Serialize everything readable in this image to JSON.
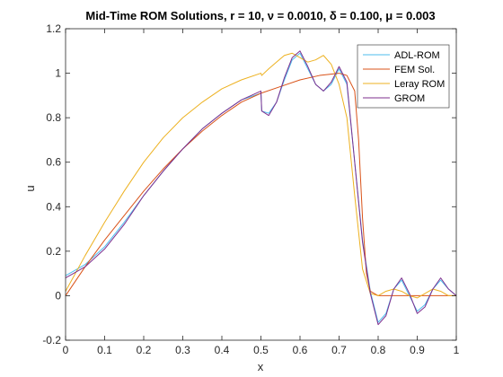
{
  "chart_data": {
    "type": "line",
    "title": "Mid-Time ROM Solutions, r = 10, ν = 0.0010, δ = 0.100, μ = 0.003",
    "xlabel": "x",
    "ylabel": "u",
    "xlim": [
      0,
      1
    ],
    "ylim": [
      -0.2,
      1.2
    ],
    "xticks": [
      "0",
      "0.1",
      "0.2",
      "0.3",
      "0.4",
      "0.5",
      "0.6",
      "0.7",
      "0.8",
      "0.9",
      "1"
    ],
    "yticks": [
      "-0.2",
      "0",
      "0.2",
      "0.4",
      "0.6",
      "0.8",
      "1",
      "1.2"
    ],
    "grid": false,
    "legend_position": "top-right",
    "series": [
      {
        "name": "ADL-ROM",
        "color": "#4DBEEE",
        "x": [
          0,
          0.02,
          0.05,
          0.1,
          0.15,
          0.2,
          0.25,
          0.3,
          0.35,
          0.4,
          0.45,
          0.5,
          0.502,
          0.52,
          0.54,
          0.56,
          0.58,
          0.6,
          0.62,
          0.64,
          0.66,
          0.68,
          0.7,
          0.72,
          0.74,
          0.76,
          0.78,
          0.8,
          0.82,
          0.84,
          0.86,
          0.88,
          0.9,
          0.92,
          0.94,
          0.96,
          0.98,
          1.0
        ],
        "y": [
          0.09,
          0.11,
          0.14,
          0.22,
          0.33,
          0.45,
          0.56,
          0.66,
          0.75,
          0.82,
          0.88,
          0.91,
          0.83,
          0.82,
          0.87,
          0.97,
          1.06,
          1.09,
          1.02,
          0.95,
          0.92,
          0.95,
          1.02,
          0.95,
          0.6,
          0.25,
          0.02,
          -0.12,
          -0.08,
          0.03,
          0.07,
          0.0,
          -0.07,
          -0.04,
          0.03,
          0.07,
          0.03,
          0.0
        ]
      },
      {
        "name": "FEM Sol.",
        "color": "#D95319",
        "x": [
          0,
          0.05,
          0.1,
          0.15,
          0.2,
          0.25,
          0.3,
          0.35,
          0.4,
          0.45,
          0.5,
          0.55,
          0.6,
          0.65,
          0.7,
          0.72,
          0.74,
          0.75,
          0.76,
          0.77,
          0.78,
          0.8,
          0.85,
          0.9,
          0.95,
          1.0
        ],
        "y": [
          0.0,
          0.13,
          0.25,
          0.36,
          0.47,
          0.57,
          0.66,
          0.74,
          0.81,
          0.87,
          0.91,
          0.94,
          0.97,
          0.99,
          1.0,
          0.99,
          0.92,
          0.7,
          0.35,
          0.1,
          0.02,
          0.0,
          0.0,
          0.0,
          0.0,
          0.0
        ]
      },
      {
        "name": "Leray ROM",
        "color": "#EDB120",
        "x": [
          0,
          0.05,
          0.1,
          0.15,
          0.2,
          0.25,
          0.3,
          0.35,
          0.4,
          0.45,
          0.5,
          0.502,
          0.52,
          0.54,
          0.56,
          0.58,
          0.6,
          0.62,
          0.64,
          0.66,
          0.68,
          0.7,
          0.72,
          0.74,
          0.76,
          0.78,
          0.8,
          0.82,
          0.84,
          0.86,
          0.88,
          0.9,
          0.92,
          0.94,
          0.96,
          0.98,
          1.0
        ],
        "y": [
          0.02,
          0.18,
          0.33,
          0.47,
          0.6,
          0.71,
          0.8,
          0.87,
          0.93,
          0.97,
          1.0,
          0.99,
          1.02,
          1.05,
          1.08,
          1.09,
          1.07,
          1.05,
          1.06,
          1.08,
          1.04,
          0.95,
          0.8,
          0.45,
          0.12,
          0.01,
          0.0,
          0.02,
          0.03,
          0.02,
          0.0,
          -0.01,
          0.01,
          0.03,
          0.02,
          0.0,
          0.0
        ]
      },
      {
        "name": "GROM",
        "color": "#7E2F8E",
        "x": [
          0,
          0.02,
          0.05,
          0.1,
          0.15,
          0.2,
          0.25,
          0.3,
          0.35,
          0.4,
          0.45,
          0.5,
          0.502,
          0.52,
          0.54,
          0.56,
          0.58,
          0.6,
          0.62,
          0.64,
          0.66,
          0.68,
          0.7,
          0.72,
          0.74,
          0.76,
          0.78,
          0.8,
          0.82,
          0.84,
          0.86,
          0.88,
          0.9,
          0.92,
          0.94,
          0.96,
          0.98,
          1.0
        ],
        "y": [
          0.08,
          0.1,
          0.13,
          0.21,
          0.32,
          0.45,
          0.56,
          0.66,
          0.75,
          0.82,
          0.88,
          0.92,
          0.83,
          0.81,
          0.87,
          0.98,
          1.07,
          1.1,
          1.03,
          0.95,
          0.92,
          0.96,
          1.03,
          0.96,
          0.6,
          0.24,
          0.01,
          -0.13,
          -0.09,
          0.03,
          0.08,
          0.01,
          -0.08,
          -0.05,
          0.03,
          0.08,
          0.03,
          0.0
        ]
      }
    ]
  }
}
